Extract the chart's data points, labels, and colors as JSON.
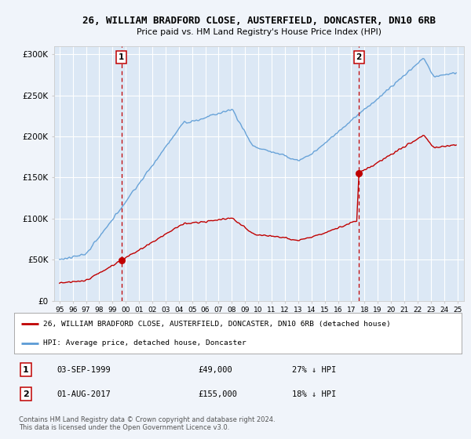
{
  "title": "26, WILLIAM BRADFORD CLOSE, AUSTERFIELD, DONCASTER, DN10 6RB",
  "subtitle": "Price paid vs. HM Land Registry's House Price Index (HPI)",
  "sale1_date_num": 1999.67,
  "sale1_price": 49000,
  "sale1_label": "1",
  "sale1_text": "03-SEP-1999",
  "sale1_pct": "27% ↓ HPI",
  "sale2_date_num": 2017.58,
  "sale2_price": 155000,
  "sale2_label": "2",
  "sale2_text": "01-AUG-2017",
  "sale2_pct": "18% ↓ HPI",
  "hpi_line_color": "#5b9bd5",
  "price_line_color": "#c00000",
  "dashed_line_color": "#c00000",
  "legend_label_red": "26, WILLIAM BRADFORD CLOSE, AUSTERFIELD, DONCASTER, DN10 6RB (detached house)",
  "legend_label_blue": "HPI: Average price, detached house, Doncaster",
  "footer": "Contains HM Land Registry data © Crown copyright and database right 2024.\nThis data is licensed under the Open Government Licence v3.0.",
  "xlim_left": 1994.6,
  "xlim_right": 2025.5,
  "ylim_bottom": 0,
  "ylim_top": 310000,
  "background_color": "#f0f4fa",
  "plot_bg_color": "#dce8f5"
}
